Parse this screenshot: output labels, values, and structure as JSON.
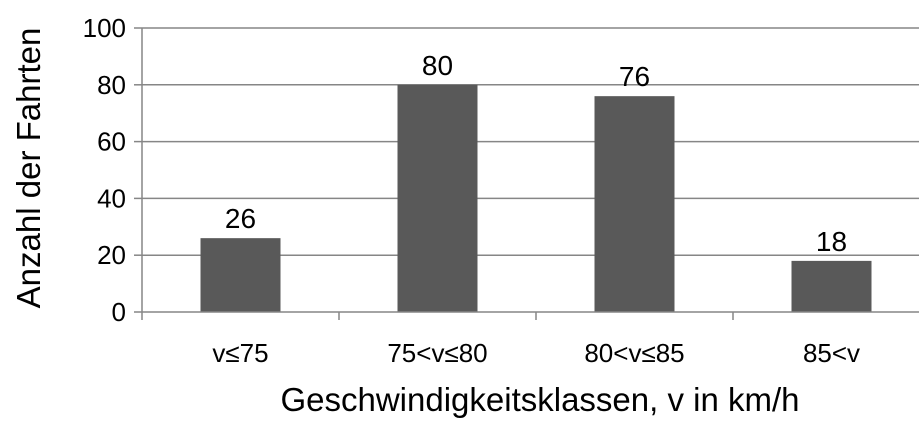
{
  "chart_data": {
    "type": "bar",
    "title": "",
    "categories": [
      "v≤75",
      "75<v≤80",
      "80<v≤85",
      "85<v"
    ],
    "values": [
      26,
      80,
      76,
      18
    ],
    "data_labels": [
      "26",
      "80",
      "76",
      "18"
    ],
    "xlabel": "Geschwindigkeitsklassen, v in km/h",
    "ylabel": "Anzahl der Fahrten",
    "ylim": [
      0,
      100
    ],
    "yticks": [
      0,
      20,
      40,
      60,
      80,
      100
    ],
    "ytick_labels": [
      "0",
      "20",
      "40",
      "60",
      "80",
      "100"
    ],
    "grid": true,
    "legend": "none",
    "colors": {
      "bar": "#595959",
      "grid": "#868686",
      "axis": "#868686",
      "text": "#000000"
    }
  }
}
